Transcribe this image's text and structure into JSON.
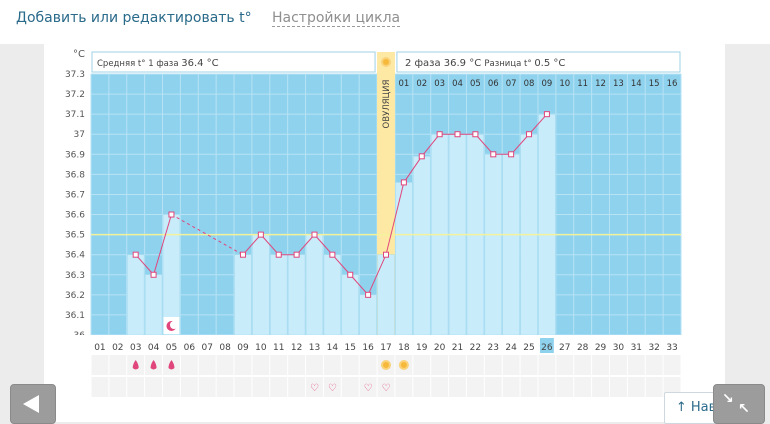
{
  "tabs": {
    "active": "Добавить или редактировать t°",
    "link": "Настройки цикла"
  },
  "nav": {
    "to_top": "↑ Наверх",
    "back_icon": "arrow-left-icon",
    "collapse_icon": "collapse-icon"
  },
  "colors": {
    "plot_bg": "#8fd2ee",
    "bar_fill": "#c8ecfa",
    "line": "#e0457b",
    "ovulation": "#fde9a3",
    "threshold": "#f4f29a"
  },
  "chart_data": {
    "type": "line",
    "y_unit": "°C",
    "yticks": [
      "37.3",
      "37.2",
      "37.1",
      "37",
      "36.9",
      "36.8",
      "36.7",
      "36.6",
      "36.5",
      "36.4",
      "36.3",
      "36.2",
      "36.1",
      "36"
    ],
    "ylim": [
      36,
      37.3
    ],
    "x_days": [
      "01",
      "02",
      "03",
      "04",
      "05",
      "06",
      "07",
      "08",
      "09",
      "10",
      "11",
      "12",
      "13",
      "14",
      "15",
      "16",
      "17",
      "18",
      "19",
      "20",
      "21",
      "22",
      "23",
      "24",
      "25",
      "26",
      "27",
      "28",
      "29",
      "30",
      "31",
      "32",
      "33"
    ],
    "highlight_day": "26",
    "phase_days": [
      "01",
      "02",
      "03",
      "04",
      "05",
      "06",
      "07",
      "08",
      "09",
      "10",
      "11",
      "12",
      "13",
      "14",
      "15",
      "16"
    ],
    "phase1_label": "Средняя t° 1 фаза",
    "phase1_avg": "36.4 °C",
    "phase2_label": "2 фаза",
    "phase2_avg": "36.9 °C",
    "diff_label": "Разница t°",
    "diff_value": "0.5 °C",
    "ovulation_label": "ОВУЛЯЦИЯ",
    "ovulation_day": 17,
    "threshold": 36.5,
    "temps": [
      null,
      null,
      36.4,
      36.3,
      36.6,
      null,
      null,
      null,
      36.4,
      36.5,
      36.4,
      36.4,
      36.5,
      36.4,
      36.3,
      36.2,
      36.4,
      36.76,
      36.89,
      37.0,
      37.0,
      37.0,
      36.9,
      36.9,
      37.0,
      37.1,
      null,
      null,
      null,
      null,
      null,
      null,
      null
    ],
    "dashed_segments": [
      [
        5,
        9
      ]
    ],
    "period_day": 5,
    "markers_drop": [
      3,
      4,
      5
    ],
    "markers_sun": [
      17,
      18
    ],
    "markers_heart": [
      13,
      14,
      16,
      17
    ]
  }
}
